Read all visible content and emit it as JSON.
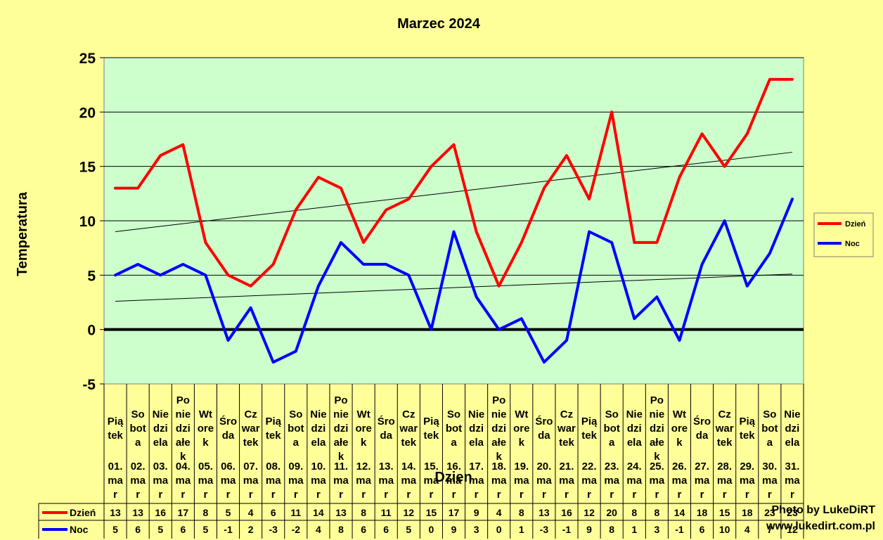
{
  "chart_data": {
    "type": "line",
    "title": "Marzec 2024",
    "xlabel": "Dzien",
    "ylabel": "Temperatura",
    "ylim": [
      -5,
      25
    ],
    "yticks": [
      25,
      20,
      15,
      10,
      5,
      0,
      -5
    ],
    "grid": true,
    "legend_position": "right",
    "categories": [
      "Piątek 01.mar",
      "Sobota 02.mar",
      "Niedziela 03.mar",
      "Poniedziałek 04.mar",
      "Wtorek 05.mar",
      "Środa 06.mar",
      "Czwartek 07.mar",
      "Piątek 08.mar",
      "Sobota 09.mar",
      "Niedziela 10.mar",
      "Poniedziałek 11.mar",
      "Wtorek 12.mar",
      "Środa 13.mar",
      "Czwartek 14.mar",
      "Piątek 15.mar",
      "Sobota 16.mar",
      "Niedziela 17.mar",
      "Poniedziałek 18.mar",
      "Wtorek 19.mar",
      "Środa 20.mar",
      "Czwartek 21.mar",
      "Piątek 22.mar",
      "Sobota 23.mar",
      "Niedziela 24.mar",
      "Poniedziałek 25.mar",
      "Wtorek 26.mar",
      "Środa 27.mar",
      "Czwartek 28.mar",
      "Piątek 29.mar",
      "Sobota 30.mar",
      "Niedziela 31.mar"
    ],
    "cat_lines": [
      [
        [
          "Pią",
          "tek"
        ],
        [
          "01.",
          "ma",
          "r"
        ]
      ],
      [
        [
          "So",
          "bot",
          "a"
        ],
        [
          "02.",
          "ma",
          "r"
        ]
      ],
      [
        [
          "Nie",
          "dzi",
          "ela"
        ],
        [
          "03.",
          "ma",
          "r"
        ]
      ],
      [
        [
          "Po",
          "nie",
          "dzi",
          "ałe",
          "k"
        ],
        [
          "04.",
          "ma",
          "r"
        ]
      ],
      [
        [
          "Wt",
          "ore",
          "k"
        ],
        [
          "05.",
          "ma",
          "r"
        ]
      ],
      [
        [
          "Śro",
          "da"
        ],
        [
          "06.",
          "ma",
          "r"
        ]
      ],
      [
        [
          "Cz",
          "war",
          "tek"
        ],
        [
          "07.",
          "ma",
          "r"
        ]
      ],
      [
        [
          "Pią",
          "tek"
        ],
        [
          "08.",
          "ma",
          "r"
        ]
      ],
      [
        [
          "So",
          "bot",
          "a"
        ],
        [
          "09.",
          "ma",
          "r"
        ]
      ],
      [
        [
          "Nie",
          "dzi",
          "ela"
        ],
        [
          "10.",
          "ma",
          "r"
        ]
      ],
      [
        [
          "Po",
          "nie",
          "dzi",
          "ałe",
          "k"
        ],
        [
          "11.",
          "ma",
          "r"
        ]
      ],
      [
        [
          "Wt",
          "ore",
          "k"
        ],
        [
          "12.",
          "ma",
          "r"
        ]
      ],
      [
        [
          "Śro",
          "da"
        ],
        [
          "13.",
          "ma",
          "r"
        ]
      ],
      [
        [
          "Cz",
          "war",
          "tek"
        ],
        [
          "14.",
          "ma",
          "r"
        ]
      ],
      [
        [
          "Pią",
          "tek"
        ],
        [
          "15.",
          "ma",
          "r"
        ]
      ],
      [
        [
          "So",
          "bot",
          "a"
        ],
        [
          "16.",
          "ma",
          "r"
        ]
      ],
      [
        [
          "Nie",
          "dzi",
          "ela"
        ],
        [
          "17.",
          "ma",
          "r"
        ]
      ],
      [
        [
          "Po",
          "nie",
          "dzi",
          "ałe",
          "k"
        ],
        [
          "18.",
          "ma",
          "r"
        ]
      ],
      [
        [
          "Wt",
          "ore",
          "k"
        ],
        [
          "19.",
          "ma",
          "r"
        ]
      ],
      [
        [
          "Śro",
          "da"
        ],
        [
          "20.",
          "ma",
          "r"
        ]
      ],
      [
        [
          "Cz",
          "war",
          "tek"
        ],
        [
          "21.",
          "ma",
          "r"
        ]
      ],
      [
        [
          "Pią",
          "tek"
        ],
        [
          "22.",
          "ma",
          "r"
        ]
      ],
      [
        [
          "So",
          "bot",
          "a"
        ],
        [
          "23.",
          "ma",
          "r"
        ]
      ],
      [
        [
          "Nie",
          "dzi",
          "ela"
        ],
        [
          "24.",
          "ma",
          "r"
        ]
      ],
      [
        [
          "Po",
          "nie",
          "dzi",
          "ałe",
          "k"
        ],
        [
          "25.",
          "ma",
          "r"
        ]
      ],
      [
        [
          "Wt",
          "ore",
          "k"
        ],
        [
          "26.",
          "ma",
          "r"
        ]
      ],
      [
        [
          "Śro",
          "da"
        ],
        [
          "27.",
          "ma",
          "r"
        ]
      ],
      [
        [
          "Cz",
          "war",
          "tek"
        ],
        [
          "28.",
          "ma",
          "r"
        ]
      ],
      [
        [
          "Pią",
          "tek"
        ],
        [
          "29.",
          "ma",
          "r"
        ]
      ],
      [
        [
          "So",
          "bot",
          "a"
        ],
        [
          "30.",
          "ma",
          "r"
        ]
      ],
      [
        [
          "Nie",
          "dzi",
          "ela"
        ],
        [
          "31.",
          "ma",
          "r"
        ]
      ]
    ],
    "series": [
      {
        "name": "Dzień",
        "color": "#ff0000",
        "values": [
          13,
          13,
          16,
          17,
          8,
          5,
          4,
          6,
          11,
          14,
          13,
          8,
          11,
          12,
          15,
          17,
          9,
          4,
          8,
          13,
          16,
          12,
          20,
          8,
          8,
          14,
          18,
          15,
          18,
          23,
          23
        ]
      },
      {
        "name": "Noc",
        "color": "#0000ff",
        "values": [
          5,
          6,
          5,
          6,
          5,
          -1,
          2,
          -3,
          -2,
          4,
          8,
          6,
          6,
          5,
          0,
          9,
          3,
          0,
          1,
          -3,
          -1,
          9,
          8,
          1,
          3,
          -1,
          6,
          10,
          4,
          7,
          12
        ]
      }
    ],
    "trendlines": [
      {
        "series": "Dzień",
        "start": 9.0,
        "end": 16.3
      },
      {
        "series": "Noc",
        "start": 2.6,
        "end": 5.1
      }
    ],
    "colors": {
      "background": "#ffff99",
      "plot_area": "#ccffcc",
      "zero_line": "#000000"
    }
  },
  "credit": {
    "line1": "Photo by LukeDiRT",
    "line2": "www.lukedirt.com.pl"
  }
}
